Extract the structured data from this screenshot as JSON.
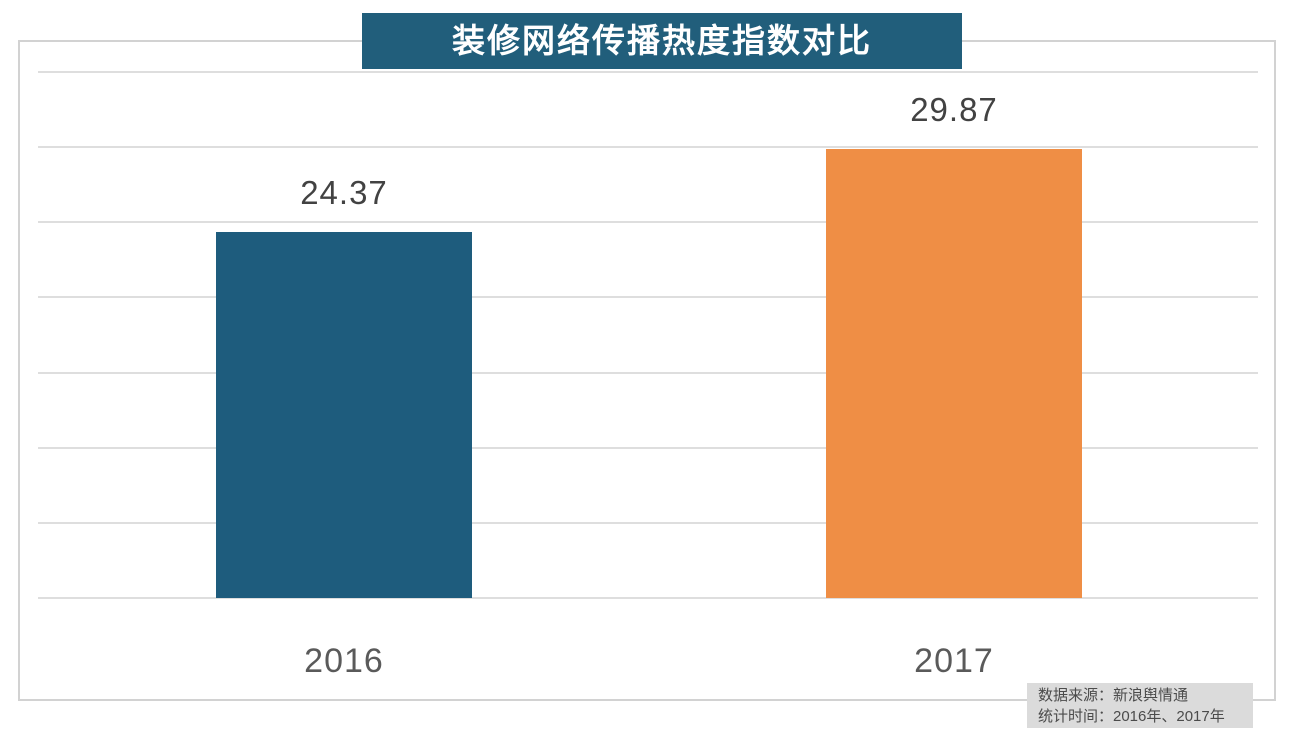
{
  "chart_data": {
    "type": "bar",
    "title": "装修网络传播热度指数对比",
    "categories": [
      "2016",
      "2017"
    ],
    "values": [
      24.37,
      29.87
    ],
    "value_labels": [
      "24.37",
      "29.87"
    ],
    "xlabel": "",
    "ylabel": "",
    "ylim": [
      0,
      35
    ],
    "grid_step": 5,
    "grid": true,
    "legend_position": "none",
    "bar_colors": [
      "#1E5C7D",
      "#EF8E45"
    ]
  },
  "source_box": {
    "line1": "数据来源：新浪舆情通",
    "line2": "统计时间：2016年、2017年"
  },
  "colors": {
    "title_bg": "#215E7B",
    "title_text": "#FFFFFF",
    "bar_2016": "#1E5C7D",
    "bar_2017": "#EF8E45",
    "gridline": "#DEDEDE",
    "border": "#D2D2D2",
    "value_label": "#424242",
    "axis_label": "#5A5A5A",
    "source_bg": "#DBDBDB",
    "source_text": "#4B4B4B"
  }
}
